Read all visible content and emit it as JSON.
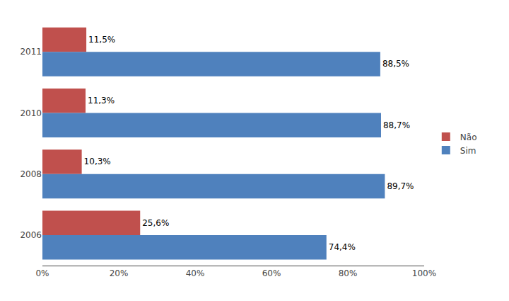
{
  "chart_data": {
    "type": "bar",
    "orientation": "horizontal",
    "categories": [
      "2011",
      "2010",
      "2008",
      "2006"
    ],
    "series": [
      {
        "name": "Não",
        "color": "#C0504D",
        "values": [
          11.5,
          11.3,
          10.3,
          25.6
        ],
        "value_labels": [
          "11,5%",
          "11,3%",
          "10,3%",
          "25,6%"
        ]
      },
      {
        "name": "Sim",
        "color": "#4F81BD",
        "values": [
          88.5,
          88.7,
          89.7,
          74.4
        ],
        "value_labels": [
          "88,5%",
          "88,7%",
          "89,7%",
          "74,4%"
        ]
      }
    ],
    "xlim": [
      0,
      100
    ],
    "xticks": [
      {
        "value": 0,
        "label": "0%"
      },
      {
        "value": 20,
        "label": "20%"
      },
      {
        "value": 40,
        "label": "40%"
      },
      {
        "value": 60,
        "label": "60%"
      },
      {
        "value": 80,
        "label": "80%"
      },
      {
        "value": 100,
        "label": "100%"
      }
    ],
    "grid": false,
    "legend": "right",
    "data_labels": true
  }
}
